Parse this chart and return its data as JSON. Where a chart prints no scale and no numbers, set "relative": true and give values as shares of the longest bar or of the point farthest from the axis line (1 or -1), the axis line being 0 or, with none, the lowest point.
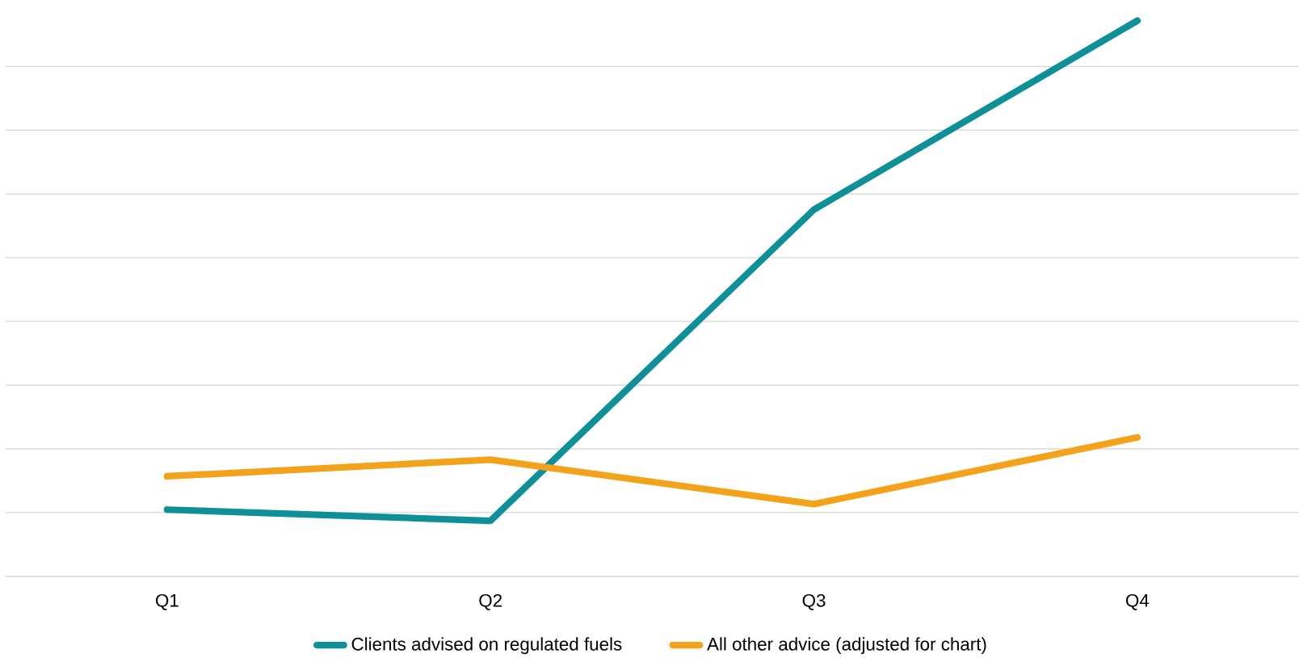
{
  "chart_data": {
    "type": "line",
    "relative": true,
    "categories": [
      "Q1",
      "Q2",
      "Q3",
      "Q4"
    ],
    "series": [
      {
        "name": "Clients advised on regulated fuels",
        "color": "#0f8f98",
        "values": [
          0.12,
          0.1,
          0.66,
          1
        ]
      },
      {
        "name": "All other advice (adjusted for chart)",
        "color": "#f4a21b",
        "values": [
          0.18,
          0.21,
          0.13,
          0.25
        ]
      }
    ],
    "grid": "y",
    "legend": "bottom",
    "marker": "none",
    "line_style": "solid"
  }
}
